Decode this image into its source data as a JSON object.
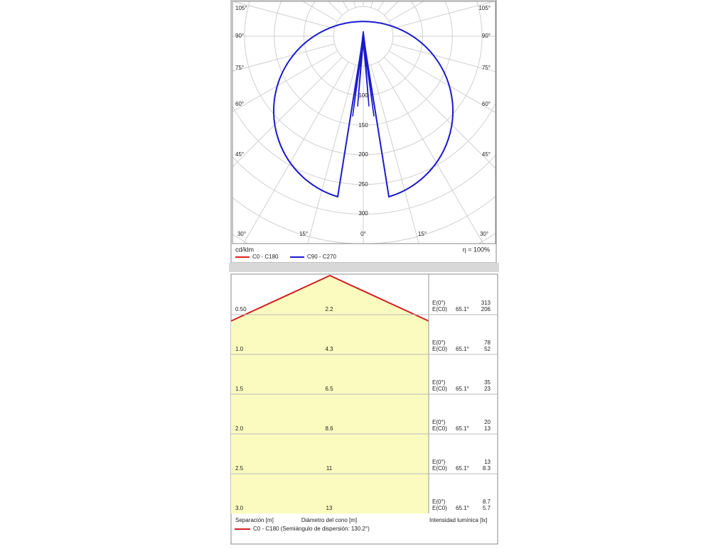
{
  "polar": {
    "angles_left": [
      "105°",
      "90°",
      "75°",
      "60°",
      "45°"
    ],
    "angles_right": [
      "105°",
      "90°",
      "75°",
      "60°",
      "45°"
    ],
    "angles_bottom": [
      "30°",
      "15°",
      "0°",
      "15°",
      "30°"
    ],
    "radial_labels": [
      "100",
      "150",
      "200",
      "250",
      "300"
    ],
    "unit": "cd/klm",
    "efficiency": "η = 100%",
    "legend": [
      {
        "name": "C0 - C180",
        "color": "#e02020"
      },
      {
        "name": "C90 - C270",
        "color": "#1a1ad0"
      }
    ]
  },
  "cone": {
    "rows": [
      {
        "distance": "0.50",
        "diameter": "2.2",
        "e0_label": "E(0°)",
        "ec0_label": "E(C0)",
        "angle": "65.1°",
        "e0": "313",
        "ec0": "206"
      },
      {
        "distance": "1.0",
        "diameter": "4.3",
        "e0_label": "E(0°)",
        "ec0_label": "E(C0)",
        "angle": "65.1°",
        "e0": "78",
        "ec0": "52"
      },
      {
        "distance": "1.5",
        "diameter": "6.5",
        "e0_label": "E(0°)",
        "ec0_label": "E(C0)",
        "angle": "65.1°",
        "e0": "35",
        "ec0": "23"
      },
      {
        "distance": "2.0",
        "diameter": "8.6",
        "e0_label": "E(0°)",
        "ec0_label": "E(C0)",
        "angle": "65.1°",
        "e0": "20",
        "ec0": "13"
      },
      {
        "distance": "2.5",
        "diameter": "11",
        "e0_label": "E(0°)",
        "ec0_label": "E(C0)",
        "angle": "65.1°",
        "e0": "13",
        "ec0": "8.3"
      },
      {
        "distance": "3.0",
        "diameter": "13",
        "e0_label": "E(0°)",
        "ec0_label": "E(C0)",
        "angle": "65.1°",
        "e0": "8.7",
        "ec0": "5.7"
      }
    ],
    "col_separation": "Separación [m]",
    "col_diameter": "Diámetro del cono [m]",
    "col_intensity": "Intensidad lumínica [lx]",
    "legend": "C0 - C180 (Semiángulo de dispersión: 130.2°)"
  }
}
